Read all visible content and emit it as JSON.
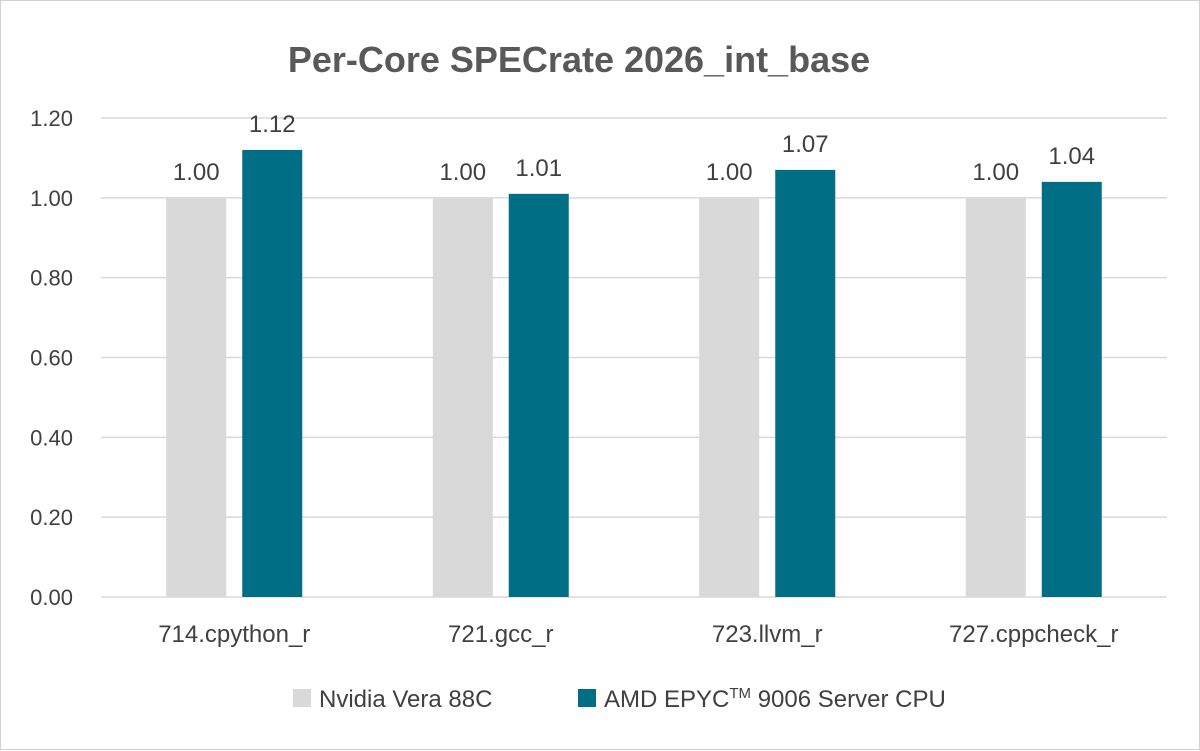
{
  "chart_data": {
    "type": "bar",
    "title": "Per-Core SPECrate 2026_int_base",
    "categories": [
      "714.cpython_r",
      "721.gcc_r",
      "723.llvm_r",
      "727.cppcheck_r"
    ],
    "series": [
      {
        "name": "Nvidia Vera 88C",
        "color": "#d9d9d9",
        "values": [
          1.0,
          1.0,
          1.0,
          1.0
        ],
        "labels": [
          "1.00",
          "1.00",
          "1.00",
          "1.00"
        ]
      },
      {
        "name": "AMD EPYC",
        "name_superscript": "TM",
        "name_suffix": " 9006 Server CPU",
        "color": "#006f85",
        "values": [
          1.12,
          1.01,
          1.07,
          1.04
        ],
        "labels": [
          "1.12",
          "1.01",
          "1.07",
          "1.04"
        ]
      }
    ],
    "ylim": [
      0,
      1.2
    ],
    "yticks": [
      "0.00",
      "0.20",
      "0.40",
      "0.60",
      "0.80",
      "1.00",
      "1.20"
    ],
    "ytick_values": [
      0,
      0.2,
      0.4,
      0.6,
      0.8,
      1.0,
      1.2
    ],
    "grid": true,
    "gridline_color": "#d9d9d9",
    "legend_position": "bottom"
  }
}
